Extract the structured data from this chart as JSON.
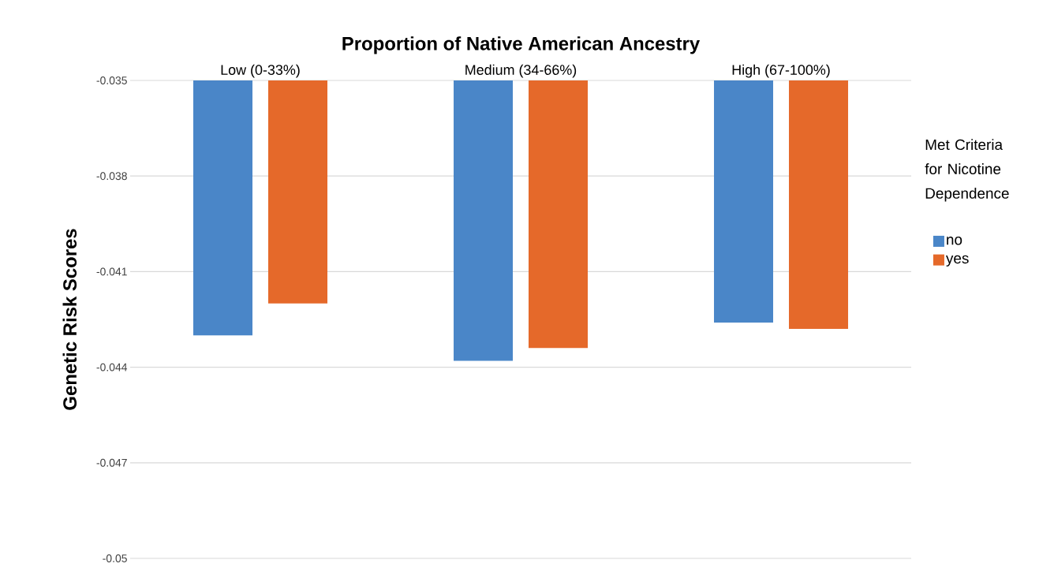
{
  "chart_data": {
    "type": "bar",
    "xlabel": "Proportion of Native American Ancestry",
    "ylabel": "Genetic Risk Scores",
    "legend_title": "Met Criteria for Nicotine Dependence",
    "categories": [
      "Low (0-33%)",
      "Medium (34-66%)",
      "High (67-100%)"
    ],
    "series": [
      {
        "name": "no",
        "color": "#4a86c8",
        "values": [
          -0.043,
          -0.0438,
          -0.0426
        ]
      },
      {
        "name": "yes",
        "color": "#e5692a",
        "values": [
          -0.042,
          -0.0434,
          -0.0428
        ]
      }
    ],
    "ylim": [
      -0.05,
      -0.035
    ],
    "yticks": [
      -0.05,
      -0.047,
      -0.044,
      -0.041,
      -0.038,
      -0.035
    ],
    "grid": "y",
    "legend": "right"
  }
}
